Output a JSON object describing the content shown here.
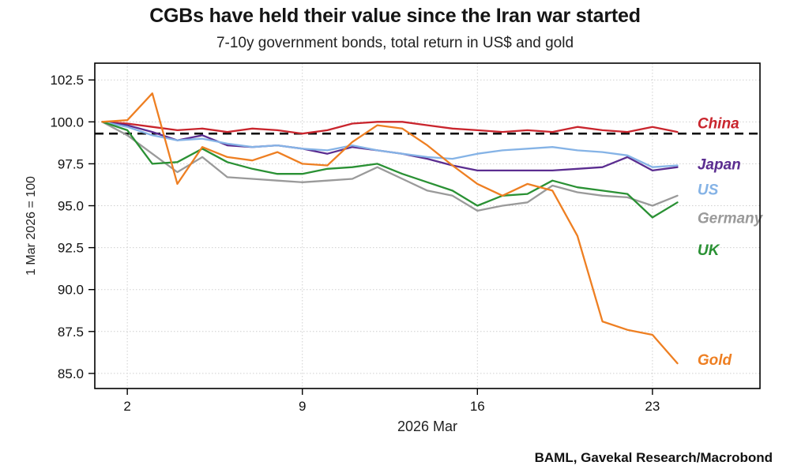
{
  "title": "CGBs have held their value since the Iran war started",
  "subtitle": "7-10y government bonds, total return in US$ and gold",
  "source": "BAML, Gavekal Research/Macrobond",
  "chart_data": {
    "type": "line",
    "title": "CGBs have held their value since the Iran war started",
    "subtitle": "7-10y government bonds, total return in US$ and gold",
    "x_label": "2026 Mar",
    "y_label": "1 Mar 2026 = 100",
    "xlim": [
      0.7,
      27.3
    ],
    "ylim": [
      84.1,
      103.5
    ],
    "grid": true,
    "legend_position": "right-inline-labels",
    "reference_line": 99.3,
    "reference_line_style": "black-dashed",
    "y_ticks": [
      85.0,
      87.5,
      90.0,
      92.5,
      95.0,
      97.5,
      100.0,
      102.5
    ],
    "x_ticks": [
      {
        "day": 2,
        "label": "2"
      },
      {
        "day": 9,
        "label": "9"
      },
      {
        "day": 16,
        "label": "16"
      },
      {
        "day": 23,
        "label": "23"
      }
    ],
    "x_days": [
      1,
      2,
      3,
      4,
      5,
      6,
      7,
      8,
      9,
      10,
      11,
      12,
      13,
      14,
      15,
      16,
      17,
      18,
      19,
      20,
      21,
      22,
      23,
      24
    ],
    "label_x": 24.8,
    "series": [
      {
        "name": "China",
        "color": "#c9252d",
        "label_y": 99.9,
        "values": [
          100.0,
          99.9,
          99.7,
          99.5,
          99.6,
          99.4,
          99.6,
          99.5,
          99.3,
          99.5,
          99.9,
          100.0,
          100.0,
          99.8,
          99.6,
          99.5,
          99.4,
          99.5,
          99.4,
          99.7,
          99.5,
          99.4,
          99.7,
          99.4
        ]
      },
      {
        "name": "Japan",
        "color": "#5b2d90",
        "label_y": 97.45,
        "values": [
          100.0,
          99.8,
          99.4,
          98.9,
          99.2,
          98.6,
          98.5,
          98.6,
          98.4,
          98.1,
          98.5,
          98.3,
          98.1,
          97.8,
          97.4,
          97.1,
          97.1,
          97.1,
          97.1,
          97.2,
          97.3,
          97.9,
          97.1,
          97.3
        ]
      },
      {
        "name": "US",
        "color": "#85b3e6",
        "label_y": 95.95,
        "values": [
          100.0,
          99.7,
          99.2,
          98.9,
          99.0,
          98.7,
          98.5,
          98.6,
          98.4,
          98.3,
          98.6,
          98.3,
          98.1,
          97.9,
          97.8,
          98.1,
          98.3,
          98.4,
          98.5,
          98.3,
          98.2,
          98.0,
          97.3,
          97.4
        ]
      },
      {
        "name": "Germany",
        "color": "#9a9a9a",
        "label_y": 94.25,
        "values": [
          100.0,
          99.2,
          98.1,
          97.0,
          97.9,
          96.7,
          96.6,
          96.5,
          96.4,
          96.5,
          96.6,
          97.3,
          96.6,
          95.9,
          95.6,
          94.7,
          95.0,
          95.2,
          96.2,
          95.8,
          95.6,
          95.5,
          95.0,
          95.6
        ]
      },
      {
        "name": "UK",
        "color": "#2a9134",
        "label_y": 92.35,
        "values": [
          100.0,
          99.5,
          97.5,
          97.6,
          98.4,
          97.6,
          97.2,
          96.9,
          96.9,
          97.2,
          97.3,
          97.5,
          96.9,
          96.4,
          95.9,
          95.0,
          95.6,
          95.7,
          96.5,
          96.1,
          95.9,
          95.7,
          94.3,
          95.2
        ]
      },
      {
        "name": "Gold",
        "color": "#ee7f22",
        "label_y": 85.8,
        "values": [
          100.0,
          100.1,
          101.7,
          96.3,
          98.5,
          97.9,
          97.7,
          98.2,
          97.5,
          97.4,
          98.8,
          99.8,
          99.6,
          98.6,
          97.4,
          96.3,
          95.6,
          96.3,
          95.9,
          93.2,
          88.1,
          87.6,
          87.3,
          85.6
        ]
      }
    ]
  }
}
